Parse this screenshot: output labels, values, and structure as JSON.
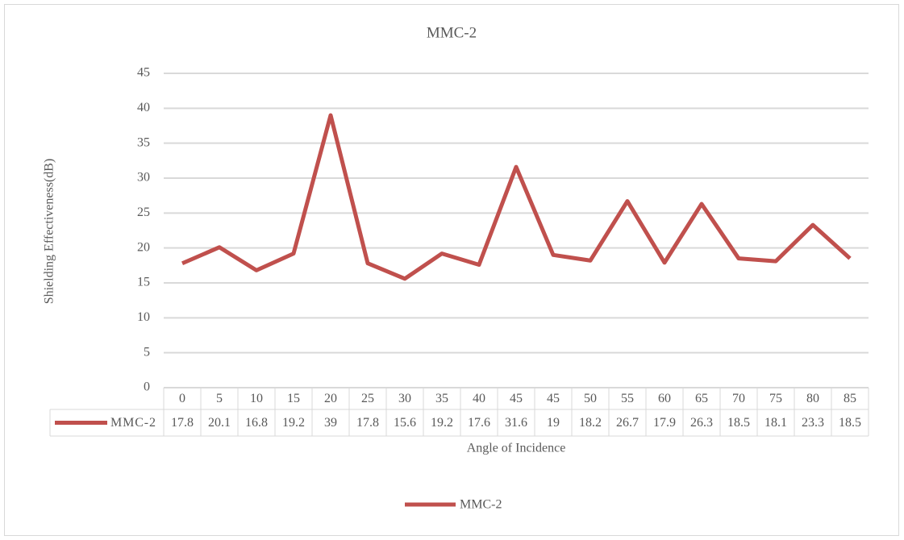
{
  "chart_data": {
    "type": "line",
    "title": "MMC-2",
    "x_label": "Angle of Incidence",
    "y_label": "Shielding Effectiveness(dB)",
    "categories": [
      "0",
      "5",
      "10",
      "15",
      "20",
      "25",
      "30",
      "35",
      "40",
      "45",
      "45",
      "50",
      "55",
      "60",
      "65",
      "70",
      "75",
      "80",
      "85"
    ],
    "series": [
      {
        "name": "MMC-2",
        "color": "#c0504d",
        "values": [
          17.8,
          20.1,
          16.8,
          19.2,
          39,
          17.8,
          15.6,
          19.2,
          17.6,
          31.6,
          19,
          18.2,
          26.7,
          17.9,
          26.3,
          18.5,
          18.1,
          23.3,
          18.5
        ]
      }
    ],
    "ylim": [
      0,
      45
    ],
    "yticks": [
      0,
      5,
      10,
      15,
      20,
      25,
      30,
      35,
      40,
      45
    ],
    "grid": true,
    "legend": "bottom",
    "data_table": true
  }
}
